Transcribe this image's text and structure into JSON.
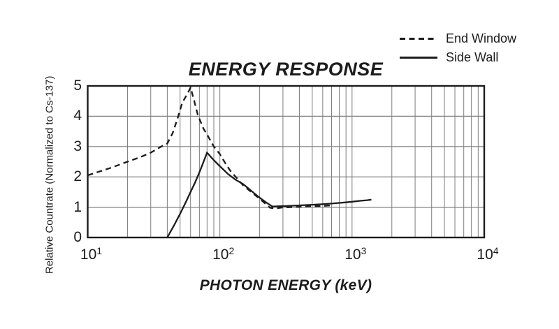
{
  "colors": {
    "ink": "#1c1c1c",
    "grid": "#7d7d7d",
    "background": "#ffffff"
  },
  "chart_data": {
    "type": "line",
    "title": "ENERGY RESPONSE",
    "xlabel": "PHOTON ENERGY (keV)",
    "ylabel": "Relative Countrate (Normalized to Cs-137)",
    "x_scale": "log",
    "xlim": [
      10,
      10000
    ],
    "ylim": [
      0,
      5
    ],
    "grid": true,
    "legend_position": "top-right",
    "x_ticks": [
      {
        "base": "10",
        "exp": "1",
        "value": 10
      },
      {
        "base": "10",
        "exp": "2",
        "value": 100
      },
      {
        "base": "10",
        "exp": "3",
        "value": 1000
      },
      {
        "base": "10",
        "exp": "4",
        "value": 10000
      }
    ],
    "y_ticks": [
      {
        "label": "0",
        "value": 0
      },
      {
        "label": "1",
        "value": 1
      },
      {
        "label": "2",
        "value": 2
      },
      {
        "label": "3",
        "value": 3
      },
      {
        "label": "4",
        "value": 4
      },
      {
        "label": "5",
        "value": 5
      }
    ],
    "series": [
      {
        "name": "End Window",
        "style": "dashed",
        "points": [
          [
            10,
            2.05
          ],
          [
            15,
            2.3
          ],
          [
            20,
            2.5
          ],
          [
            25,
            2.65
          ],
          [
            30,
            2.8
          ],
          [
            36,
            3.0
          ],
          [
            40,
            3.1
          ],
          [
            44,
            3.45
          ],
          [
            48,
            3.95
          ],
          [
            52,
            4.45
          ],
          [
            57,
            4.75
          ],
          [
            60,
            4.95
          ],
          [
            64,
            4.5
          ],
          [
            68,
            4.05
          ],
          [
            75,
            3.6
          ],
          [
            80,
            3.4
          ],
          [
            90,
            3.0
          ],
          [
            100,
            2.75
          ],
          [
            110,
            2.45
          ],
          [
            120,
            2.2
          ],
          [
            135,
            1.95
          ],
          [
            150,
            1.72
          ],
          [
            175,
            1.48
          ],
          [
            200,
            1.28
          ],
          [
            220,
            1.12
          ],
          [
            240,
            0.98
          ],
          [
            265,
            0.96
          ],
          [
            300,
            0.99
          ],
          [
            350,
            1.0
          ],
          [
            400,
            1.01
          ],
          [
            500,
            1.03
          ],
          [
            600,
            1.04
          ],
          [
            700,
            1.06
          ]
        ]
      },
      {
        "name": "Side Wall",
        "style": "solid",
        "points": [
          [
            40,
            0
          ],
          [
            45,
            0.4
          ],
          [
            50,
            0.78
          ],
          [
            55,
            1.15
          ],
          [
            60,
            1.5
          ],
          [
            65,
            1.82
          ],
          [
            70,
            2.15
          ],
          [
            75,
            2.48
          ],
          [
            80,
            2.8
          ],
          [
            90,
            2.55
          ],
          [
            100,
            2.35
          ],
          [
            115,
            2.1
          ],
          [
            130,
            1.92
          ],
          [
            150,
            1.76
          ],
          [
            175,
            1.52
          ],
          [
            200,
            1.31
          ],
          [
            225,
            1.15
          ],
          [
            250,
            1.02
          ],
          [
            280,
            1.03
          ],
          [
            320,
            1.04
          ],
          [
            400,
            1.06
          ],
          [
            500,
            1.08
          ],
          [
            600,
            1.1
          ],
          [
            700,
            1.12
          ],
          [
            800,
            1.14
          ],
          [
            900,
            1.16
          ],
          [
            1000,
            1.18
          ],
          [
            1150,
            1.21
          ],
          [
            1300,
            1.23
          ],
          [
            1400,
            1.25
          ]
        ]
      }
    ]
  }
}
